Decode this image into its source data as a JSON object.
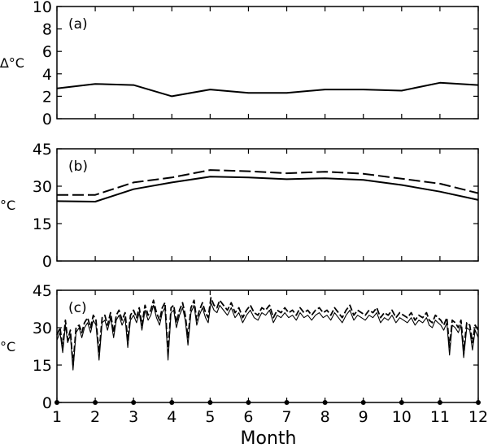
{
  "figure": {
    "xlabel": "Month"
  },
  "chart_data": [
    {
      "type": "line",
      "panel_label": "(a)",
      "title": "",
      "xlabel": "",
      "ylabel": "∆°C",
      "xlim": [
        1,
        12
      ],
      "ylim": [
        0,
        10
      ],
      "yticks": [
        "0",
        "2",
        "4",
        "6",
        "8",
        "10"
      ],
      "x": [
        1,
        2,
        3,
        4,
        5,
        6,
        7,
        8,
        9,
        10,
        11,
        12
      ],
      "series": [
        {
          "style": "solid",
          "values": [
            2.7,
            3.1,
            3.0,
            2.0,
            2.6,
            2.3,
            2.3,
            2.6,
            2.6,
            2.5,
            3.2,
            3.0
          ]
        }
      ]
    },
    {
      "type": "line",
      "panel_label": "(b)",
      "title": "",
      "xlabel": "",
      "ylabel": "°C",
      "xlim": [
        1,
        12
      ],
      "ylim": [
        0,
        45
      ],
      "yticks": [
        "0",
        "15",
        "30",
        "45"
      ],
      "x": [
        1,
        2,
        3,
        4,
        5,
        6,
        7,
        8,
        9,
        10,
        11,
        12
      ],
      "series": [
        {
          "style": "dashed",
          "values": [
            26.5,
            26.5,
            31.5,
            33.5,
            36.5,
            36.0,
            35.2,
            35.8,
            35.0,
            33.0,
            31.0,
            27.2
          ]
        },
        {
          "style": "solid",
          "values": [
            24.0,
            23.8,
            28.8,
            31.5,
            33.8,
            33.5,
            32.8,
            33.2,
            32.5,
            30.5,
            27.8,
            24.5
          ]
        }
      ]
    },
    {
      "type": "line",
      "panel_label": "(c)",
      "title": "",
      "xlabel": "Month",
      "ylabel": "°C",
      "xlim": [
        1,
        12
      ],
      "ylim": [
        0,
        45
      ],
      "yticks": [
        "0",
        "15",
        "30",
        "45"
      ],
      "xticks": [
        "1",
        "2",
        "3",
        "4",
        "5",
        "6",
        "7",
        "8",
        "9",
        "10",
        "11",
        "12"
      ],
      "x": [
        1.0,
        1.08,
        1.15,
        1.22,
        1.28,
        1.35,
        1.42,
        1.5,
        1.58,
        1.65,
        1.72,
        1.8,
        1.88,
        1.95,
        2.02,
        2.1,
        2.18,
        2.25,
        2.32,
        2.4,
        2.48,
        2.55,
        2.62,
        2.7,
        2.78,
        2.85,
        2.92,
        3.0,
        3.08,
        3.15,
        3.22,
        3.3,
        3.38,
        3.45,
        3.52,
        3.6,
        3.68,
        3.75,
        3.82,
        3.9,
        3.98,
        4.05,
        4.12,
        4.2,
        4.28,
        4.35,
        4.42,
        4.5,
        4.58,
        4.65,
        4.72,
        4.8,
        4.88,
        4.95,
        5.02,
        5.1,
        5.18,
        5.25,
        5.35,
        5.45,
        5.55,
        5.65,
        5.75,
        5.85,
        5.95,
        6.05,
        6.15,
        6.25,
        6.35,
        6.45,
        6.55,
        6.65,
        6.75,
        6.85,
        6.95,
        7.05,
        7.15,
        7.25,
        7.35,
        7.45,
        7.55,
        7.65,
        7.75,
        7.85,
        7.95,
        8.05,
        8.15,
        8.25,
        8.35,
        8.45,
        8.55,
        8.65,
        8.75,
        8.85,
        8.95,
        9.05,
        9.15,
        9.25,
        9.35,
        9.45,
        9.55,
        9.65,
        9.75,
        9.85,
        9.95,
        10.05,
        10.15,
        10.25,
        10.35,
        10.45,
        10.55,
        10.65,
        10.72,
        10.8,
        10.88,
        10.95,
        11.02,
        11.1,
        11.18,
        11.25,
        11.32,
        11.4,
        11.48,
        11.55,
        11.62,
        11.7,
        11.78,
        11.85,
        11.92,
        12.0
      ],
      "series": [
        {
          "style": "dashed",
          "values": [
            27,
            30,
            22,
            33,
            25,
            29,
            15,
            30,
            31,
            28,
            32,
            34,
            30,
            35,
            33,
            20,
            34,
            35,
            31,
            36,
            28,
            35,
            37,
            33,
            36,
            25,
            35,
            37,
            34,
            38,
            31,
            39,
            35,
            37,
            41,
            36,
            33,
            38,
            40,
            20,
            38,
            39,
            32,
            37,
            40,
            35,
            26,
            38,
            41,
            33,
            37,
            40,
            36,
            34,
            42,
            39,
            38,
            41,
            39,
            37,
            40,
            36,
            38,
            34,
            37,
            39,
            36,
            35,
            38,
            37,
            39,
            34,
            37,
            36,
            38,
            36,
            37,
            35,
            38,
            36,
            37,
            35,
            37,
            38,
            36,
            37,
            35,
            38,
            36,
            34,
            37,
            39,
            35,
            37,
            36,
            35,
            37,
            36,
            38,
            34,
            36,
            35,
            37,
            34,
            36,
            35,
            34,
            36,
            33,
            35,
            34,
            36,
            33,
            32,
            35,
            34,
            33,
            31,
            34,
            22,
            33,
            32,
            30,
            33,
            21,
            32,
            31,
            24,
            31,
            29
          ]
        },
        {
          "style": "solid",
          "values": [
            25,
            28,
            20,
            31,
            24,
            27,
            13,
            28,
            30,
            26,
            30,
            32,
            28,
            33,
            31,
            17,
            32,
            33,
            29,
            34,
            26,
            33,
            35,
            31,
            34,
            22,
            33,
            35,
            32,
            36,
            29,
            37,
            33,
            35,
            39,
            34,
            31,
            36,
            38,
            17,
            36,
            37,
            30,
            35,
            38,
            33,
            23,
            36,
            39,
            31,
            35,
            38,
            34,
            32,
            40,
            37,
            36,
            39,
            37,
            35,
            38,
            34,
            36,
            32,
            35,
            37,
            34,
            33,
            36,
            35,
            37,
            32,
            35,
            34,
            36,
            34,
            35,
            33,
            36,
            34,
            35,
            33,
            35,
            36,
            34,
            35,
            33,
            36,
            34,
            32,
            35,
            37,
            33,
            35,
            34,
            33,
            35,
            34,
            36,
            32,
            34,
            33,
            35,
            32,
            34,
            33,
            32,
            34,
            31,
            33,
            32,
            34,
            31,
            30,
            33,
            32,
            31,
            29,
            32,
            19,
            31,
            30,
            28,
            31,
            18,
            30,
            29,
            21,
            29,
            26
          ]
        }
      ]
    }
  ]
}
